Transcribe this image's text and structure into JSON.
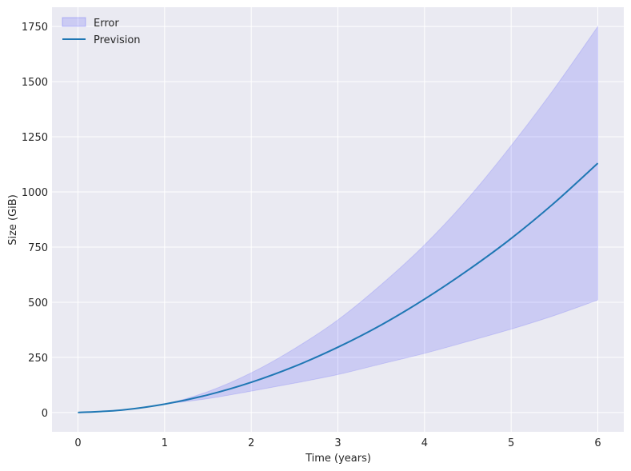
{
  "chart_data": {
    "type": "area",
    "xlabel": "Time (years)",
    "ylabel": "Size (GiB)",
    "xlim": [
      -0.3,
      6.3
    ],
    "ylim": [
      -87.5,
      1837.5
    ],
    "xticks": [
      0,
      1,
      2,
      3,
      4,
      5,
      6
    ],
    "yticks": [
      0,
      250,
      500,
      750,
      1000,
      1250,
      1500,
      1750
    ],
    "grid": true,
    "legend_position": "top-left",
    "colors": {
      "background": "#eaeaf2",
      "grid": "#ffffff",
      "band_fill": "#0000ff",
      "band_stroke": "#0000ff",
      "line": "#1f77b4",
      "text": "#262626"
    },
    "series": [
      {
        "name": "Prevision",
        "kind": "line",
        "x": [
          0,
          0.5,
          1,
          1.5,
          2,
          2.5,
          3,
          3.5,
          4,
          4.5,
          5,
          5.5,
          6
        ],
        "y": [
          0,
          11,
          38,
          80,
          137,
          209,
          296,
          397,
          514,
          645,
          789,
          951,
          1130
        ]
      },
      {
        "name": "Error",
        "kind": "band",
        "x": [
          0,
          0.5,
          1,
          1.5,
          2,
          2.5,
          3,
          3.5,
          4,
          4.5,
          5,
          5.5,
          6
        ],
        "upper": [
          0,
          11,
          38,
          95,
          180,
          290,
          420,
          580,
          760,
          970,
          1210,
          1470,
          1750
        ],
        "lower": [
          0,
          11,
          38,
          63,
          97,
          133,
          172,
          220,
          268,
          322,
          378,
          440,
          510
        ]
      }
    ],
    "legend": [
      {
        "label": "Error",
        "kind": "band"
      },
      {
        "label": "Prevision",
        "kind": "line"
      }
    ]
  }
}
